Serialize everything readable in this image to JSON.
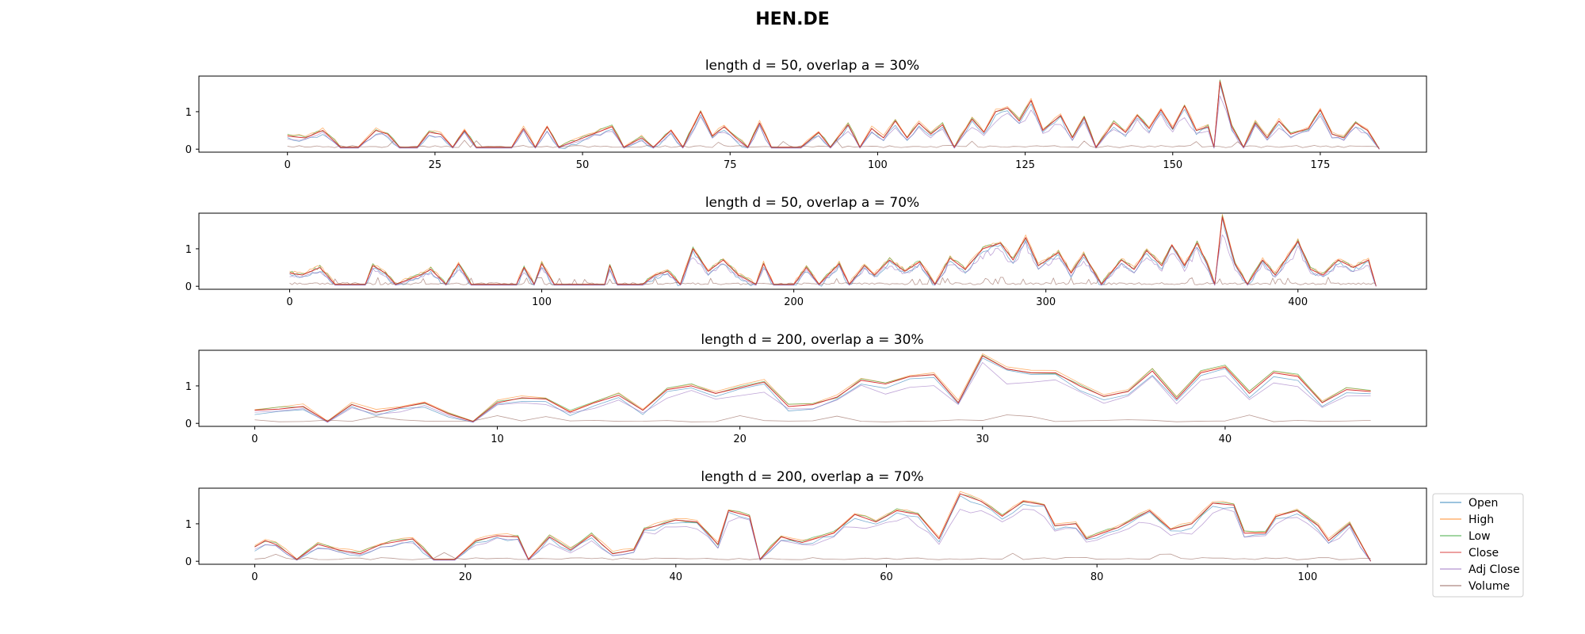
{
  "figure_title": "HEN.DE",
  "colors": {
    "Open": "#1f77b4",
    "High": "#ff7f0e",
    "Low": "#2ca02c",
    "Close": "#d62728",
    "Adj Close": "#9467bd",
    "Volume": "#8c564b"
  },
  "legend": {
    "placement": "right of bottom panel",
    "entries": [
      "Open",
      "High",
      "Low",
      "Close",
      "Adj Close",
      "Volume"
    ]
  },
  "chart_data": [
    {
      "type": "line",
      "title": "length d = 50, overlap a = 30%",
      "xlim": [
        -15,
        193
      ],
      "ylim": [
        -0.08,
        1.95
      ],
      "xticks": [
        0,
        25,
        50,
        75,
        100,
        125,
        150,
        175
      ],
      "yticks": [
        0,
        1
      ],
      "x_count": 186,
      "anchors": [
        [
          0,
          0.35
        ],
        [
          3,
          0.3
        ],
        [
          6,
          0.5
        ],
        [
          9,
          0.05
        ],
        [
          12,
          0.05
        ],
        [
          15,
          0.5
        ],
        [
          17,
          0.4
        ],
        [
          19,
          0.05
        ],
        [
          22,
          0.05
        ],
        [
          24,
          0.45
        ],
        [
          26,
          0.4
        ],
        [
          28,
          0.05
        ],
        [
          30,
          0.5
        ],
        [
          32,
          0.05
        ],
        [
          35,
          0.05
        ],
        [
          38,
          0.05
        ],
        [
          40,
          0.55
        ],
        [
          42,
          0.05
        ],
        [
          44,
          0.6
        ],
        [
          46,
          0.05
        ],
        [
          55,
          0.6
        ],
        [
          57,
          0.05
        ],
        [
          60,
          0.3
        ],
        [
          62,
          0.05
        ],
        [
          65,
          0.5
        ],
        [
          67,
          0.05
        ],
        [
          70,
          1.0
        ],
        [
          72,
          0.35
        ],
        [
          74,
          0.6
        ],
        [
          76,
          0.3
        ],
        [
          78,
          0.05
        ],
        [
          80,
          0.7
        ],
        [
          82,
          0.05
        ],
        [
          87,
          0.05
        ],
        [
          90,
          0.45
        ],
        [
          92,
          0.05
        ],
        [
          95,
          0.65
        ],
        [
          97,
          0.05
        ],
        [
          99,
          0.55
        ],
        [
          101,
          0.3
        ],
        [
          103,
          0.75
        ],
        [
          105,
          0.3
        ],
        [
          107,
          0.7
        ],
        [
          109,
          0.4
        ],
        [
          111,
          0.65
        ],
        [
          113,
          0.05
        ],
        [
          116,
          0.8
        ],
        [
          118,
          0.45
        ],
        [
          120,
          1.0
        ],
        [
          122,
          1.1
        ],
        [
          124,
          0.75
        ],
        [
          126,
          1.3
        ],
        [
          128,
          0.5
        ],
        [
          131,
          0.9
        ],
        [
          133,
          0.3
        ],
        [
          135,
          0.85
        ],
        [
          137,
          0.05
        ],
        [
          140,
          0.7
        ],
        [
          142,
          0.45
        ],
        [
          144,
          0.9
        ],
        [
          146,
          0.55
        ],
        [
          148,
          1.05
        ],
        [
          150,
          0.55
        ],
        [
          152,
          1.15
        ],
        [
          154,
          0.5
        ],
        [
          156,
          0.6
        ],
        [
          157,
          0.05
        ],
        [
          158,
          1.8
        ],
        [
          160,
          0.6
        ],
        [
          162,
          0.05
        ],
        [
          164,
          0.7
        ],
        [
          166,
          0.3
        ],
        [
          168,
          0.75
        ],
        [
          170,
          0.4
        ],
        [
          173,
          0.55
        ],
        [
          175,
          1.05
        ],
        [
          177,
          0.4
        ],
        [
          179,
          0.3
        ],
        [
          181,
          0.7
        ],
        [
          183,
          0.5
        ],
        [
          185,
          0.0
        ]
      ]
    },
    {
      "type": "line",
      "title": "length d = 50, overlap a = 70%",
      "xlim": [
        -36,
        451
      ],
      "ylim": [
        -0.08,
        1.95
      ],
      "xticks": [
        0,
        100,
        200,
        300,
        400
      ],
      "yticks": [
        0,
        1
      ],
      "x_count": 432,
      "anchors": [
        [
          0,
          0.35
        ],
        [
          5,
          0.3
        ],
        [
          12,
          0.5
        ],
        [
          18,
          0.05
        ],
        [
          30,
          0.05
        ],
        [
          33,
          0.55
        ],
        [
          38,
          0.35
        ],
        [
          42,
          0.05
        ],
        [
          52,
          0.3
        ],
        [
          56,
          0.45
        ],
        [
          62,
          0.05
        ],
        [
          67,
          0.6
        ],
        [
          72,
          0.05
        ],
        [
          90,
          0.05
        ],
        [
          93,
          0.5
        ],
        [
          97,
          0.05
        ],
        [
          100,
          0.6
        ],
        [
          105,
          0.05
        ],
        [
          125,
          0.05
        ],
        [
          127,
          0.55
        ],
        [
          130,
          0.05
        ],
        [
          140,
          0.05
        ],
        [
          145,
          0.3
        ],
        [
          150,
          0.4
        ],
        [
          155,
          0.05
        ],
        [
          160,
          1.0
        ],
        [
          166,
          0.4
        ],
        [
          172,
          0.7
        ],
        [
          178,
          0.3
        ],
        [
          185,
          0.05
        ],
        [
          188,
          0.6
        ],
        [
          192,
          0.05
        ],
        [
          200,
          0.05
        ],
        [
          205,
          0.5
        ],
        [
          210,
          0.05
        ],
        [
          218,
          0.6
        ],
        [
          222,
          0.05
        ],
        [
          228,
          0.55
        ],
        [
          232,
          0.3
        ],
        [
          238,
          0.7
        ],
        [
          244,
          0.4
        ],
        [
          250,
          0.65
        ],
        [
          256,
          0.05
        ],
        [
          262,
          0.75
        ],
        [
          268,
          0.45
        ],
        [
          275,
          1.0
        ],
        [
          282,
          1.15
        ],
        [
          287,
          0.7
        ],
        [
          292,
          1.3
        ],
        [
          297,
          0.55
        ],
        [
          305,
          0.9
        ],
        [
          310,
          0.35
        ],
        [
          315,
          0.85
        ],
        [
          322,
          0.05
        ],
        [
          330,
          0.7
        ],
        [
          335,
          0.45
        ],
        [
          340,
          0.95
        ],
        [
          346,
          0.55
        ],
        [
          350,
          1.1
        ],
        [
          355,
          0.55
        ],
        [
          360,
          1.15
        ],
        [
          364,
          0.6
        ],
        [
          367,
          0.05
        ],
        [
          370,
          1.85
        ],
        [
          375,
          0.6
        ],
        [
          380,
          0.05
        ],
        [
          386,
          0.7
        ],
        [
          391,
          0.3
        ],
        [
          396,
          0.8
        ],
        [
          400,
          1.2
        ],
        [
          405,
          0.45
        ],
        [
          410,
          0.3
        ],
        [
          416,
          0.7
        ],
        [
          422,
          0.5
        ],
        [
          428,
          0.7
        ],
        [
          431,
          0.0
        ]
      ]
    },
    {
      "type": "line",
      "title": "length d = 200, overlap a = 30%",
      "xlim": [
        -2.3,
        48.3
      ],
      "ylim": [
        -0.08,
        1.95
      ],
      "xticks": [
        0,
        10,
        20,
        30,
        40
      ],
      "yticks": [
        0,
        1
      ],
      "x_count": 47,
      "anchors": [
        [
          0,
          0.35
        ],
        [
          1,
          0.38
        ],
        [
          2,
          0.45
        ],
        [
          3,
          0.05
        ],
        [
          4,
          0.5
        ],
        [
          5,
          0.3
        ],
        [
          6,
          0.42
        ],
        [
          7,
          0.55
        ],
        [
          8,
          0.25
        ],
        [
          9,
          0.05
        ],
        [
          10,
          0.55
        ],
        [
          11,
          0.68
        ],
        [
          12,
          0.65
        ],
        [
          13,
          0.3
        ],
        [
          14,
          0.55
        ],
        [
          15,
          0.75
        ],
        [
          16,
          0.35
        ],
        [
          17,
          0.9
        ],
        [
          18,
          1.0
        ],
        [
          19,
          0.8
        ],
        [
          20,
          0.95
        ],
        [
          21,
          1.1
        ],
        [
          22,
          0.45
        ],
        [
          23,
          0.5
        ],
        [
          24,
          0.7
        ],
        [
          25,
          1.15
        ],
        [
          26,
          1.05
        ],
        [
          27,
          1.25
        ],
        [
          28,
          1.3
        ],
        [
          29,
          0.55
        ],
        [
          30,
          1.8
        ],
        [
          31,
          1.45
        ],
        [
          32,
          1.35
        ],
        [
          33,
          1.35
        ],
        [
          34,
          1.0
        ],
        [
          35,
          0.72
        ],
        [
          36,
          0.85
        ],
        [
          37,
          1.4
        ],
        [
          38,
          0.65
        ],
        [
          39,
          1.35
        ],
        [
          40,
          1.5
        ],
        [
          41,
          0.8
        ],
        [
          42,
          1.35
        ],
        [
          43,
          1.25
        ],
        [
          44,
          0.55
        ],
        [
          45,
          0.9
        ],
        [
          46,
          0.85
        ]
      ]
    },
    {
      "type": "line",
      "title": "length d = 200, overlap a = 70%",
      "xlim": [
        -5.3,
        111.3
      ],
      "ylim": [
        -0.08,
        1.95
      ],
      "xticks": [
        0,
        20,
        40,
        60,
        80,
        100
      ],
      "yticks": [
        0,
        1
      ],
      "x_count": 107,
      "anchors": [
        [
          0,
          0.38
        ],
        [
          1,
          0.55
        ],
        [
          2,
          0.45
        ],
        [
          4,
          0.05
        ],
        [
          6,
          0.45
        ],
        [
          8,
          0.3
        ],
        [
          10,
          0.2
        ],
        [
          12,
          0.45
        ],
        [
          15,
          0.6
        ],
        [
          17,
          0.05
        ],
        [
          19,
          0.05
        ],
        [
          21,
          0.55
        ],
        [
          23,
          0.68
        ],
        [
          25,
          0.65
        ],
        [
          26,
          0.05
        ],
        [
          28,
          0.65
        ],
        [
          30,
          0.3
        ],
        [
          32,
          0.7
        ],
        [
          34,
          0.2
        ],
        [
          36,
          0.3
        ],
        [
          37,
          0.85
        ],
        [
          40,
          1.1
        ],
        [
          42,
          1.05
        ],
        [
          44,
          0.45
        ],
        [
          45,
          1.35
        ],
        [
          47,
          1.2
        ],
        [
          48,
          0.05
        ],
        [
          50,
          0.65
        ],
        [
          52,
          0.5
        ],
        [
          55,
          0.75
        ],
        [
          57,
          1.25
        ],
        [
          59,
          1.05
        ],
        [
          61,
          1.35
        ],
        [
          63,
          1.25
        ],
        [
          65,
          0.6
        ],
        [
          67,
          1.8
        ],
        [
          69,
          1.6
        ],
        [
          71,
          1.2
        ],
        [
          73,
          1.6
        ],
        [
          75,
          1.5
        ],
        [
          76,
          0.95
        ],
        [
          78,
          1.0
        ],
        [
          79,
          0.6
        ],
        [
          82,
          0.9
        ],
        [
          85,
          1.35
        ],
        [
          87,
          0.85
        ],
        [
          89,
          1.0
        ],
        [
          91,
          1.55
        ],
        [
          93,
          1.5
        ],
        [
          94,
          0.75
        ],
        [
          96,
          0.75
        ],
        [
          97,
          1.2
        ],
        [
          99,
          1.35
        ],
        [
          101,
          0.95
        ],
        [
          102,
          0.55
        ],
        [
          104,
          1.0
        ],
        [
          106,
          0.0
        ]
      ]
    }
  ]
}
